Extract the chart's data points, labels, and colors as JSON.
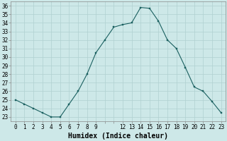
{
  "x": [
    0,
    1,
    2,
    3,
    4,
    5,
    6,
    7,
    8,
    9,
    10,
    11,
    12,
    13,
    14,
    15,
    16,
    17,
    18,
    19,
    20,
    21,
    22,
    23
  ],
  "y": [
    25.0,
    24.5,
    24.0,
    23.5,
    23.0,
    23.0,
    24.5,
    26.0,
    28.0,
    30.5,
    32.0,
    33.5,
    33.8,
    34.0,
    35.8,
    35.7,
    34.2,
    32.0,
    31.0,
    28.8,
    26.5,
    26.0,
    24.8,
    23.5
  ],
  "xticks": [
    0,
    1,
    2,
    3,
    4,
    5,
    6,
    7,
    8,
    9,
    12,
    13,
    14,
    15,
    16,
    17,
    18,
    19,
    20,
    21,
    22,
    23
  ],
  "yticks": [
    23,
    24,
    25,
    26,
    27,
    28,
    29,
    30,
    31,
    32,
    33,
    34,
    35,
    36
  ],
  "xlabel": "Humidex (Indice chaleur)",
  "xlim": [
    -0.5,
    23.5
  ],
  "ylim": [
    22.5,
    36.5
  ],
  "bg_color": "#cde8e8",
  "grid_color": "#b0d0d0",
  "line_color": "#1a6060",
  "marker_color": "#1a6060",
  "tick_fontsize": 5.5,
  "label_fontsize": 7.0
}
